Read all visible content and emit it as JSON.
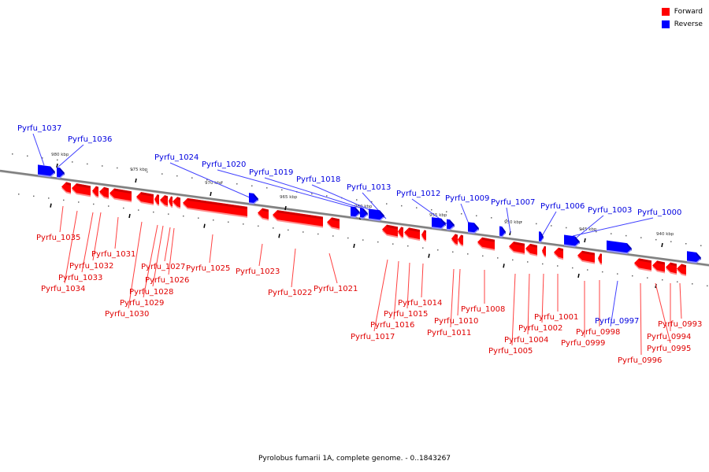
{
  "legend": {
    "items": [
      {
        "label": "Forward",
        "color": "#ff0000"
      },
      {
        "label": "Reverse",
        "color": "#0000ff"
      }
    ]
  },
  "caption": "Pyrolobus fumarii 1A, complete genome. - 0..1843267",
  "colors": {
    "forward": "#ff0000",
    "forward_dark": "#b00000",
    "forward_light": "#ff9090",
    "reverse": "#0000ff",
    "reverse_dark": "#000090",
    "reverse_light": "#9090ff",
    "backbone": "#808080",
    "forward_leader": "#ff4040",
    "reverse_leader": "#4040ff"
  },
  "scale": {
    "unit": "kbp",
    "ticks": [
      {
        "label": "980 kbp"
      },
      {
        "label": "975 kbp"
      },
      {
        "label": "970 kbp"
      },
      {
        "label": "965 kbp"
      },
      {
        "label": "960 kbp"
      },
      {
        "label": "955 kbp"
      },
      {
        "label": "950 kbp"
      },
      {
        "label": "945 kbp"
      },
      {
        "label": "940 kbp"
      }
    ]
  },
  "genes": [
    {
      "id": "Pyrfu_1037",
      "strand": "reverse"
    },
    {
      "id": "Pyrfu_1036",
      "strand": "reverse"
    },
    {
      "id": "Pyrfu_1035",
      "strand": "forward"
    },
    {
      "id": "Pyrfu_1034",
      "strand": "forward"
    },
    {
      "id": "Pyrfu_1033",
      "strand": "forward"
    },
    {
      "id": "Pyrfu_1032",
      "strand": "forward"
    },
    {
      "id": "Pyrfu_1031",
      "strand": "forward"
    },
    {
      "id": "Pyrfu_1030",
      "strand": "forward"
    },
    {
      "id": "Pyrfu_1029",
      "strand": "forward"
    },
    {
      "id": "Pyrfu_1028",
      "strand": "forward"
    },
    {
      "id": "Pyrfu_1027",
      "strand": "forward"
    },
    {
      "id": "Pyrfu_1026",
      "strand": "forward"
    },
    {
      "id": "Pyrfu_1025",
      "strand": "forward"
    },
    {
      "id": "Pyrfu_1024",
      "strand": "reverse"
    },
    {
      "id": "Pyrfu_1023",
      "strand": "forward"
    },
    {
      "id": "Pyrfu_1022",
      "strand": "forward"
    },
    {
      "id": "Pyrfu_1021",
      "strand": "forward"
    },
    {
      "id": "Pyrfu_1020",
      "strand": "reverse"
    },
    {
      "id": "Pyrfu_1019",
      "strand": "reverse"
    },
    {
      "id": "Pyrfu_1018",
      "strand": "reverse"
    },
    {
      "id": "Pyrfu_1017",
      "strand": "forward"
    },
    {
      "id": "Pyrfu_1016",
      "strand": "forward"
    },
    {
      "id": "Pyrfu_1015",
      "strand": "forward"
    },
    {
      "id": "Pyrfu_1014",
      "strand": "forward"
    },
    {
      "id": "Pyrfu_1013",
      "strand": "reverse"
    },
    {
      "id": "Pyrfu_1012",
      "strand": "reverse"
    },
    {
      "id": "Pyrfu_1011",
      "strand": "forward"
    },
    {
      "id": "Pyrfu_1010",
      "strand": "forward"
    },
    {
      "id": "Pyrfu_1009",
      "strand": "reverse"
    },
    {
      "id": "Pyrfu_1008",
      "strand": "forward"
    },
    {
      "id": "Pyrfu_1007",
      "strand": "reverse"
    },
    {
      "id": "Pyrfu_1006",
      "strand": "reverse"
    },
    {
      "id": "Pyrfu_1005",
      "strand": "forward"
    },
    {
      "id": "Pyrfu_1004",
      "strand": "forward"
    },
    {
      "id": "Pyrfu_1003",
      "strand": "reverse"
    },
    {
      "id": "Pyrfu_1002",
      "strand": "forward"
    },
    {
      "id": "Pyrfu_1001",
      "strand": "forward"
    },
    {
      "id": "Pyrfu_1000",
      "strand": "reverse"
    },
    {
      "id": "Pyrfu_0999",
      "strand": "forward"
    },
    {
      "id": "Pyrfu_0998",
      "strand": "forward"
    },
    {
      "id": "Pyrfu_0997",
      "strand": "reverse"
    },
    {
      "id": "Pyrfu_0996",
      "strand": "forward"
    },
    {
      "id": "Pyrfu_0995",
      "strand": "forward"
    },
    {
      "id": "Pyrfu_0994",
      "strand": "forward"
    },
    {
      "id": "Pyrfu_0993",
      "strand": "forward"
    }
  ]
}
